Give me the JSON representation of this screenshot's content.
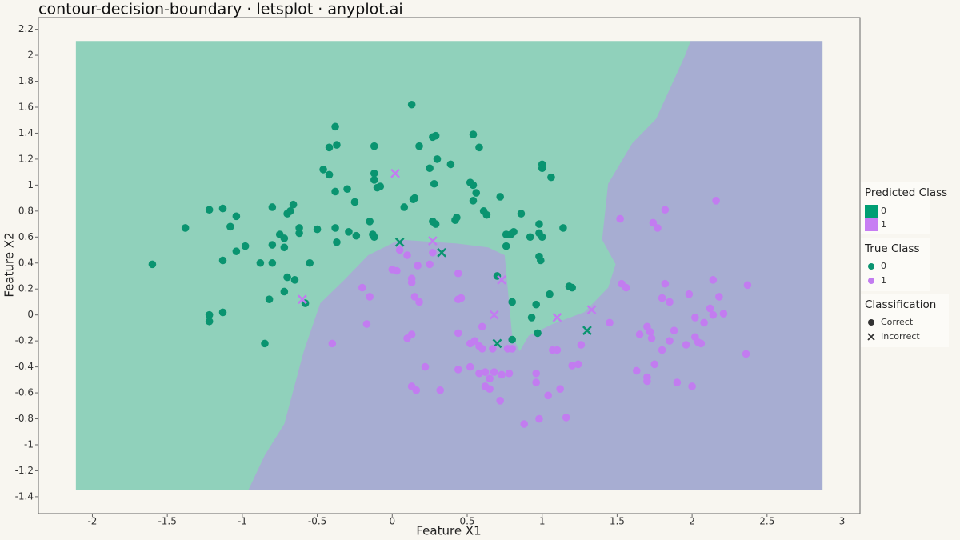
{
  "chart_data": {
    "type": "scatter",
    "title": "contour-decision-boundary · letsplot · anyplot.ai",
    "x_label": "Feature X1",
    "y_label": "Feature X2",
    "xlim": [
      -2.36,
      3.12
    ],
    "ylim": [
      -1.53,
      2.29
    ],
    "xticks": [
      -2,
      -1.5,
      -1,
      -0.5,
      0,
      0.5,
      1,
      1.5,
      2,
      2.5,
      3
    ],
    "yticks": [
      -1.4,
      -1.2,
      -1,
      -0.8,
      -0.6,
      -0.4,
      -0.2,
      0,
      0.2,
      0.4,
      0.6,
      0.8,
      1,
      1.2,
      1.4,
      1.6,
      1.8,
      2,
      2.2
    ],
    "region_alpha": 0.42,
    "regions": [
      {
        "name": "0",
        "color": "#009e73",
        "x": [
          -2.11,
          2.87,
          2.87,
          -2.11
        ],
        "y": [
          2.11,
          2.11,
          -1.35,
          -1.35
        ]
      },
      {
        "name": "1",
        "color": "#c77df3",
        "x": [
          1.99,
          1.95,
          1.76,
          1.6,
          1.44,
          1.4,
          1.49,
          1.44,
          1.28,
          1.07,
          0.91,
          0.85,
          0.8,
          0.77,
          0.75,
          0.64,
          0.43,
          0.05,
          -0.16,
          -0.32,
          -0.48,
          -0.59,
          -0.72,
          -0.85,
          -0.96,
          2.87,
          2.87
        ],
        "y": [
          2.11,
          1.99,
          1.51,
          1.32,
          1.01,
          0.58,
          0.39,
          0.21,
          0.02,
          -0.07,
          -0.16,
          -0.28,
          -0.16,
          0.21,
          0.46,
          0.52,
          0.55,
          0.58,
          0.46,
          0.27,
          0.09,
          -0.28,
          -0.84,
          -1.08,
          -1.35,
          -1.35,
          2.11
        ]
      }
    ],
    "predicted_legend_title": "Predicted Class",
    "true_legend_title": "True Class",
    "classification_legend_title": "Classification",
    "classification": [
      "Correct",
      "Incorrect"
    ],
    "series": [
      {
        "name": "0",
        "color": "#0a9470",
        "x": [
          -1.6,
          -1.38,
          -1.22,
          -1.22,
          -1.22,
          -1.13,
          -1.13,
          -1.13,
          -1.08,
          -1.04,
          -1.04,
          -0.98,
          -0.88,
          -0.85,
          -0.82,
          -0.8,
          -0.8,
          -0.8,
          -0.75,
          -0.72,
          -0.72,
          -0.7,
          -0.7,
          -0.68,
          -0.66,
          -0.72,
          -0.65,
          -0.62,
          -0.62,
          -0.58,
          -0.55,
          -0.5,
          -0.46,
          -0.42,
          -0.42,
          -0.37,
          -0.38,
          -0.38,
          -0.37,
          -0.3,
          -0.29,
          -0.24,
          -0.25,
          -0.12,
          -0.1,
          -0.12,
          -0.08,
          -0.15,
          -0.13,
          -0.12,
          -0.12,
          -0.38,
          0.08,
          0.15,
          0.14,
          0.13,
          0.18,
          0.25,
          0.27,
          0.29,
          0.3,
          0.28,
          0.27,
          0.29,
          0.39,
          0.42,
          0.43,
          0.52,
          0.54,
          0.54,
          0.56,
          0.54,
          0.58,
          0.63,
          0.61,
          0.72,
          0.76,
          0.79,
          0.81,
          0.76,
          0.86,
          0.92,
          0.98,
          0.98,
          1.0,
          0.98,
          0.99,
          1.0,
          1.0,
          1.06,
          1.14,
          0.7,
          0.8,
          0.93,
          0.96,
          0.97,
          0.8,
          1.05,
          1.18,
          1.2
        ],
        "y": [
          0.39,
          0.67,
          0.81,
          0.0,
          -0.05,
          0.82,
          0.02,
          0.42,
          0.68,
          0.76,
          0.49,
          0.53,
          0.4,
          -0.22,
          0.12,
          0.83,
          0.54,
          0.4,
          0.62,
          0.59,
          0.52,
          0.29,
          0.78,
          0.8,
          0.85,
          0.18,
          0.27,
          0.63,
          0.67,
          0.09,
          0.4,
          0.66,
          1.12,
          1.08,
          1.29,
          1.31,
          0.95,
          0.67,
          0.56,
          0.97,
          0.64,
          0.61,
          0.87,
          1.04,
          0.98,
          1.09,
          0.99,
          0.72,
          0.62,
          0.6,
          1.3,
          1.45,
          0.83,
          0.9,
          0.89,
          1.62,
          1.3,
          1.13,
          1.37,
          1.38,
          1.2,
          1.01,
          0.72,
          0.7,
          1.16,
          0.73,
          0.75,
          1.02,
          1.0,
          0.88,
          0.94,
          1.39,
          1.29,
          0.77,
          0.8,
          0.91,
          0.62,
          0.62,
          0.64,
          0.53,
          0.78,
          0.6,
          0.7,
          0.63,
          0.6,
          0.45,
          0.42,
          1.16,
          1.13,
          1.06,
          0.67,
          0.3,
          0.1,
          -0.02,
          0.08,
          -0.14,
          -0.19,
          0.16,
          0.22,
          0.21
        ],
        "incorrect_x": [
          0.05,
          0.33,
          0.7,
          1.3
        ],
        "incorrect_y": [
          0.56,
          0.48,
          -0.22,
          -0.12
        ]
      },
      {
        "name": "1",
        "color": "#c27cf0",
        "x": [
          -0.4,
          -0.2,
          -0.17,
          -0.15,
          0.0,
          0.03,
          0.05,
          0.1,
          0.13,
          0.13,
          0.17,
          0.15,
          0.18,
          0.27,
          0.25,
          0.1,
          0.13,
          0.22,
          0.13,
          0.16,
          0.32,
          0.44,
          0.44,
          0.44,
          0.46,
          0.44,
          0.52,
          0.55,
          0.52,
          0.58,
          0.6,
          0.6,
          0.58,
          0.62,
          0.62,
          0.65,
          0.65,
          0.67,
          0.68,
          0.72,
          0.73,
          0.77,
          0.8,
          0.78,
          0.88,
          0.96,
          0.96,
          0.98,
          1.04,
          1.07,
          1.1,
          1.12,
          1.16,
          1.2,
          1.24,
          1.26,
          1.45,
          1.52,
          1.53,
          1.56,
          1.63,
          1.65,
          1.7,
          1.72,
          1.7,
          1.7,
          1.73,
          1.75,
          1.74,
          1.77,
          1.8,
          1.82,
          1.8,
          1.82,
          1.85,
          1.85,
          1.88,
          1.9,
          1.96,
          1.98,
          2.0,
          2.02,
          2.02,
          2.04,
          2.06,
          2.08,
          2.12,
          2.14,
          2.14,
          2.16,
          2.18,
          2.21,
          2.36,
          2.37
        ],
        "y": [
          -0.22,
          0.21,
          -0.07,
          0.14,
          0.35,
          0.34,
          0.5,
          0.46,
          0.28,
          0.25,
          0.38,
          0.14,
          0.1,
          0.48,
          0.39,
          -0.18,
          -0.15,
          -0.4,
          -0.55,
          -0.58,
          -0.58,
          -0.42,
          0.32,
          0.12,
          0.13,
          -0.14,
          -0.22,
          -0.2,
          -0.4,
          -0.45,
          -0.09,
          -0.26,
          -0.24,
          -0.44,
          -0.55,
          -0.57,
          -0.49,
          -0.26,
          -0.44,
          -0.66,
          -0.46,
          -0.26,
          -0.26,
          -0.45,
          -0.84,
          -0.45,
          -0.52,
          -0.8,
          -0.62,
          -0.27,
          -0.27,
          -0.57,
          -0.79,
          -0.39,
          -0.38,
          -0.23,
          -0.06,
          0.74,
          0.24,
          0.21,
          -0.43,
          -0.15,
          -0.09,
          -0.13,
          -0.48,
          -0.51,
          -0.18,
          -0.38,
          0.71,
          0.67,
          -0.27,
          0.81,
          0.13,
          0.24,
          0.1,
          -0.2,
          -0.12,
          -0.52,
          -0.23,
          0.16,
          -0.55,
          -0.17,
          -0.02,
          -0.21,
          -0.22,
          -0.06,
          0.05,
          0.27,
          0.0,
          0.88,
          0.14,
          0.01,
          -0.3,
          0.23
        ],
        "incorrect_x": [
          0.02,
          0.27,
          0.73,
          0.68,
          -0.6,
          1.1,
          1.33
        ],
        "incorrect_y": [
          1.09,
          0.57,
          0.27,
          0.0,
          0.12,
          -0.02,
          0.04
        ]
      }
    ]
  }
}
